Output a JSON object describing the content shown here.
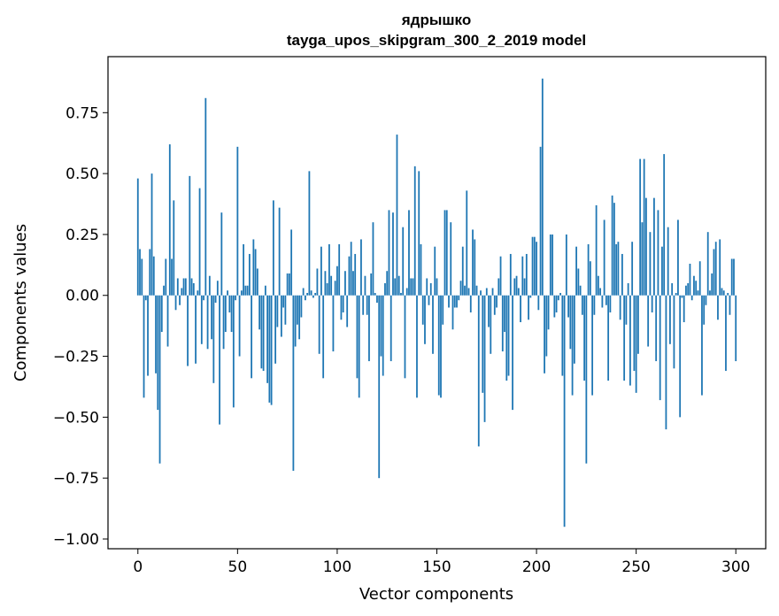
{
  "chart_data": {
    "type": "bar",
    "title": "ядрышко",
    "subtitle": "tayga_upos_skipgram_300_2_2019 model",
    "xlabel": "Vector components",
    "ylabel": "Components values",
    "xlim": [
      -15,
      315
    ],
    "ylim": [
      -1.04,
      0.98
    ],
    "xticks": [
      0,
      50,
      100,
      150,
      200,
      250,
      300
    ],
    "yticks": [
      -1.0,
      -0.75,
      -0.5,
      -0.25,
      0.0,
      0.25,
      0.5,
      0.75
    ],
    "ytick_labels": [
      "−1.00",
      "−0.75",
      "−0.50",
      "−0.25",
      "0.00",
      "0.25",
      "0.50",
      "0.75"
    ],
    "grid": false,
    "bar_color": "#1f77b4",
    "values": [
      0.48,
      0.19,
      0.15,
      -0.42,
      -0.02,
      -0.33,
      0.19,
      0.5,
      0.16,
      -0.32,
      -0.47,
      -0.69,
      -0.15,
      0.04,
      0.15,
      -0.21,
      0.62,
      0.15,
      0.39,
      -0.06,
      0.07,
      -0.04,
      0.03,
      0.07,
      0.07,
      -0.29,
      0.49,
      0.07,
      0.05,
      -0.28,
      0.02,
      0.44,
      -0.2,
      -0.02,
      0.81,
      -0.22,
      0.08,
      -0.18,
      -0.36,
      -0.03,
      0.06,
      -0.53,
      0.34,
      -0.22,
      -0.15,
      0.02,
      -0.07,
      -0.15,
      -0.46,
      -0.02,
      0.61,
      -0.25,
      0.02,
      0.21,
      0.04,
      0.04,
      0.17,
      -0.34,
      0.23,
      0.19,
      0.11,
      -0.14,
      -0.3,
      -0.31,
      0.04,
      -0.36,
      -0.44,
      -0.45,
      0.39,
      -0.28,
      -0.13,
      0.36,
      -0.17,
      -0.05,
      -0.12,
      0.09,
      0.09,
      0.27,
      -0.72,
      -0.21,
      -0.12,
      -0.18,
      -0.09,
      0.03,
      -0.02,
      0.01,
      0.51,
      0.02,
      -0.01,
      0.01,
      0.11,
      -0.24,
      0.2,
      -0.34,
      0.1,
      0.05,
      0.21,
      0.08,
      -0.23,
      0.06,
      0.12,
      0.21,
      -0.1,
      -0.07,
      0.1,
      -0.13,
      0.16,
      0.22,
      0.1,
      0.17,
      -0.34,
      -0.42,
      0.23,
      -0.08,
      0.08,
      -0.08,
      -0.27,
      0.09,
      0.3,
      0.01,
      -0.03,
      -0.75,
      -0.25,
      -0.33,
      0.05,
      0.1,
      0.35,
      -0.27,
      0.34,
      0.07,
      0.66,
      0.08,
      0.01,
      0.28,
      -0.34,
      0.03,
      0.35,
      0.07,
      0.07,
      0.53,
      -0.42,
      0.51,
      0.21,
      -0.12,
      -0.2,
      0.07,
      -0.04,
      0.05,
      -0.24,
      0.2,
      0.07,
      -0.41,
      -0.42,
      -0.12,
      0.35,
      0.35,
      -0.05,
      0.3,
      -0.14,
      -0.05,
      -0.05,
      -0.02,
      0.06,
      0.2,
      0.04,
      0.43,
      0.03,
      -0.07,
      0.27,
      0.23,
      0.04,
      -0.62,
      0.02,
      -0.4,
      -0.52,
      0.03,
      -0.13,
      -0.24,
      0.03,
      -0.08,
      -0.05,
      0.07,
      0.16,
      -0.23,
      -0.15,
      -0.35,
      -0.33,
      0.17,
      -0.47,
      0.07,
      0.08,
      0.03,
      -0.11,
      0.16,
      0.07,
      0.17,
      -0.1,
      -0.01,
      0.24,
      0.24,
      0.22,
      -0.06,
      0.61,
      0.89,
      -0.32,
      -0.25,
      -0.14,
      0.25,
      0.25,
      -0.09,
      -0.07,
      -0.02,
      0.01,
      -0.33,
      -0.95,
      0.25,
      -0.09,
      -0.22,
      -0.41,
      -0.28,
      0.2,
      0.11,
      0.04,
      -0.08,
      -0.35,
      -0.69,
      0.21,
      0.14,
      -0.41,
      -0.08,
      0.37,
      0.08,
      0.03,
      -0.05,
      0.31,
      -0.04,
      -0.35,
      -0.07,
      0.41,
      0.38,
      0.21,
      0.22,
      -0.1,
      0.17,
      -0.35,
      -0.12,
      0.05,
      -0.37,
      0.22,
      -0.31,
      -0.4,
      -0.24,
      0.56,
      0.3,
      0.56,
      0.4,
      -0.21,
      0.26,
      -0.07,
      0.4,
      -0.27,
      0.35,
      -0.43,
      0.2,
      0.58,
      -0.55,
      0.28,
      -0.2,
      0.05,
      -0.3,
      0.01,
      0.31,
      -0.5,
      -0.01,
      -0.11,
      0.04,
      0.05,
      0.13,
      -0.02,
      0.08,
      0.06,
      0.02,
      0.14,
      -0.41,
      -0.12,
      -0.04,
      0.26,
      0.02,
      0.09,
      0.19,
      0.22,
      -0.1,
      0.23,
      0.03,
      0.02,
      -0.31,
      0.01,
      -0.08,
      0.15,
      0.15,
      -0.27
    ]
  }
}
